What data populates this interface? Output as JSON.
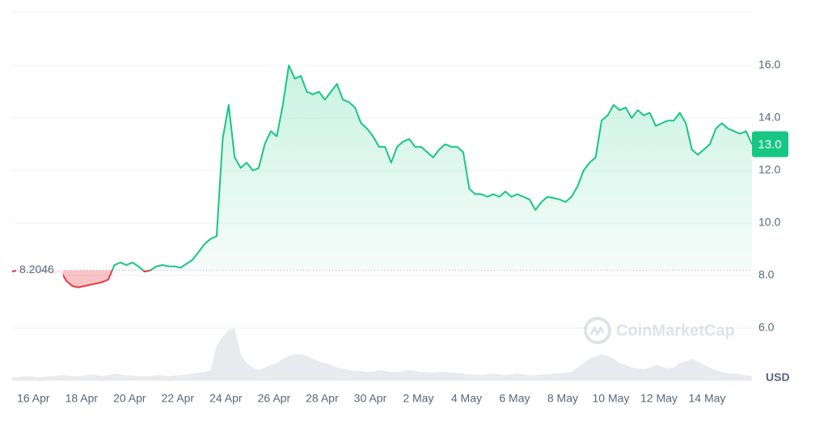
{
  "chart_data": {
    "type": "line",
    "watermark": "CoinMarketCap",
    "currency": "USD",
    "baseline": 8.2046,
    "current_price": {
      "value": 13.0,
      "label": "13.0"
    },
    "categories": [
      null,
      null,
      null,
      "16 Apr",
      null,
      null,
      null,
      null,
      null,
      null,
      null,
      "18 Apr",
      null,
      null,
      null,
      null,
      null,
      null,
      null,
      "20 Apr",
      null,
      null,
      null,
      null,
      null,
      null,
      null,
      "22 Apr",
      null,
      null,
      null,
      null,
      null,
      null,
      null,
      "24 Apr",
      null,
      null,
      null,
      null,
      null,
      null,
      null,
      "26 Apr",
      null,
      null,
      null,
      null,
      null,
      null,
      null,
      "28 Apr",
      null,
      null,
      null,
      null,
      null,
      null,
      null,
      "30 Apr",
      null,
      null,
      null,
      null,
      null,
      null,
      null,
      "2 May",
      null,
      null,
      null,
      null,
      null,
      null,
      null,
      "4 May",
      null,
      null,
      null,
      null,
      null,
      null,
      null,
      "6 May",
      null,
      null,
      null,
      null,
      null,
      null,
      null,
      "8 May",
      null,
      null,
      null,
      null,
      null,
      null,
      null,
      "10 May",
      null,
      null,
      null,
      null,
      null,
      null,
      null,
      "12 May",
      null,
      null,
      null,
      null,
      null,
      null,
      null,
      "14 May",
      null,
      null,
      null,
      null,
      null,
      null,
      null,
      null
    ],
    "series": [
      {
        "color_up": "#16c784",
        "color_down": "#ea3943",
        "values": [
          8.15,
          8.2,
          8.2,
          8.2,
          8.2,
          8.2,
          8.2,
          8.1,
          8.2,
          7.8,
          7.6,
          7.55,
          7.6,
          7.65,
          7.7,
          7.75,
          7.85,
          8.4,
          8.5,
          8.4,
          8.5,
          8.35,
          8.15,
          8.2,
          8.35,
          8.4,
          8.35,
          8.35,
          8.3,
          8.45,
          8.6,
          8.9,
          9.2,
          9.4,
          9.5,
          13.2,
          14.5,
          12.5,
          12.1,
          12.3,
          12.0,
          12.1,
          13.0,
          13.5,
          13.3,
          14.5,
          16.0,
          15.5,
          15.6,
          15.0,
          14.9,
          15.0,
          14.7,
          15.0,
          15.3,
          14.7,
          14.6,
          14.4,
          13.8,
          13.6,
          13.3,
          12.9,
          12.9,
          12.3,
          12.9,
          13.1,
          13.2,
          12.9,
          12.9,
          12.7,
          12.5,
          12.8,
          13.0,
          12.9,
          12.9,
          12.7,
          11.3,
          11.1,
          11.1,
          11.0,
          11.1,
          11.0,
          11.2,
          11.0,
          11.1,
          11.0,
          10.9,
          10.5,
          10.8,
          11.0,
          10.95,
          10.9,
          10.8,
          11.0,
          11.4,
          12.0,
          12.3,
          12.5,
          13.9,
          14.1,
          14.5,
          14.3,
          14.4,
          14.0,
          14.3,
          14.1,
          14.2,
          13.7,
          13.8,
          13.9,
          13.9,
          14.2,
          13.8,
          12.8,
          12.6,
          12.8,
          13.0,
          13.6,
          13.8,
          13.6,
          13.5,
          13.4,
          13.5,
          13.0
        ]
      }
    ],
    "volume": {
      "color": "#e9eaee",
      "values": [
        4,
        4,
        5,
        5,
        4,
        4,
        5,
        5,
        6,
        6,
        5,
        5,
        6,
        7,
        6,
        5,
        6,
        8,
        7,
        6,
        6,
        5,
        5,
        5,
        6,
        6,
        5,
        6,
        6,
        7,
        8,
        9,
        10,
        12,
        40,
        50,
        58,
        60,
        30,
        20,
        15,
        12,
        15,
        18,
        20,
        25,
        28,
        30,
        30,
        28,
        25,
        22,
        20,
        18,
        15,
        14,
        12,
        11,
        11,
        10,
        10,
        12,
        11,
        10,
        10,
        11,
        12,
        11,
        10,
        10,
        9,
        10,
        10,
        9,
        9,
        8,
        7,
        7,
        6,
        7,
        8,
        7,
        6,
        7,
        8,
        7,
        6,
        6,
        7,
        7,
        8,
        8,
        9,
        10,
        15,
        20,
        25,
        28,
        30,
        28,
        25,
        20,
        18,
        15,
        14,
        13,
        15,
        18,
        16,
        14,
        15,
        20,
        22,
        25,
        22,
        18,
        15,
        12,
        10,
        8,
        8,
        7,
        6,
        5
      ]
    },
    "ylim": [
      4,
      18
    ],
    "yticks": [
      {
        "value": 6,
        "label": "6.0"
      },
      {
        "value": 8,
        "label": "8.0"
      },
      {
        "value": 10,
        "label": "10.0"
      },
      {
        "value": 12,
        "label": "12.0"
      },
      {
        "value": 14,
        "label": "14.0"
      },
      {
        "value": 16,
        "label": "16.0"
      }
    ],
    "grid": true
  }
}
